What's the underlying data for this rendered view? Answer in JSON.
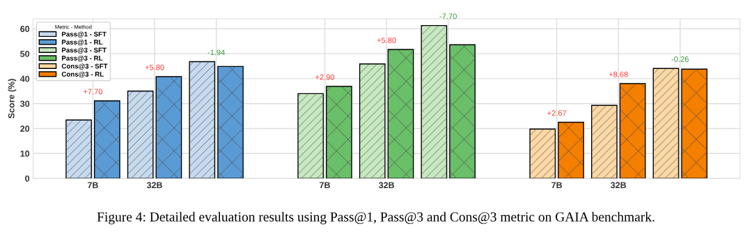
{
  "chart_data": {
    "type": "bar",
    "ylabel": "Score (%)",
    "legend_title": "Metric - Method",
    "categories": [
      "7B",
      "32B",
      null,
      "7B",
      "32B",
      null,
      "7B",
      "32B",
      null
    ],
    "series": [
      {
        "name": "Pass@1 - SFT",
        "color": "#c6dbef",
        "values": [
          23.4,
          35.0,
          46.8,
          null,
          null,
          null,
          null,
          null,
          null
        ]
      },
      {
        "name": "Pass@1 - RL",
        "color": "#5b9bd5",
        "values": [
          31.1,
          40.8,
          44.9,
          null,
          null,
          null,
          null,
          null,
          null
        ]
      },
      {
        "name": "Pass@3 - SFT",
        "color": "#c7e9c0",
        "values": [
          null,
          null,
          null,
          34.0,
          45.9,
          61.3,
          null,
          null,
          null
        ]
      },
      {
        "name": "Pass@3 - RL",
        "color": "#6abf69",
        "values": [
          null,
          null,
          null,
          36.9,
          51.7,
          53.6,
          null,
          null,
          null
        ]
      },
      {
        "name": "Cons@3 - SFT",
        "color": "#fdd9a6",
        "values": [
          null,
          null,
          null,
          null,
          null,
          null,
          19.8,
          29.3,
          44.1
        ]
      },
      {
        "name": "Cons@3 - RL",
        "color": "#f57f00",
        "values": [
          null,
          null,
          null,
          null,
          null,
          null,
          22.5,
          38.0,
          43.8
        ]
      }
    ],
    "ylim": [
      0,
      64
    ],
    "yticks": [
      0,
      10,
      20,
      30,
      40,
      50,
      60
    ],
    "grid": true,
    "legend": "top left",
    "annotations": [
      "+7.70",
      "+5.80",
      "-1.94",
      "+2.90",
      "+5.80",
      "-7.70",
      "+2.67",
      "+8.68",
      "-0.26",
      "Figure 4: Detailed evaluation results using Pass@1, Pass@3 and Cons@3 metric on GAIA benchmark."
    ]
  }
}
